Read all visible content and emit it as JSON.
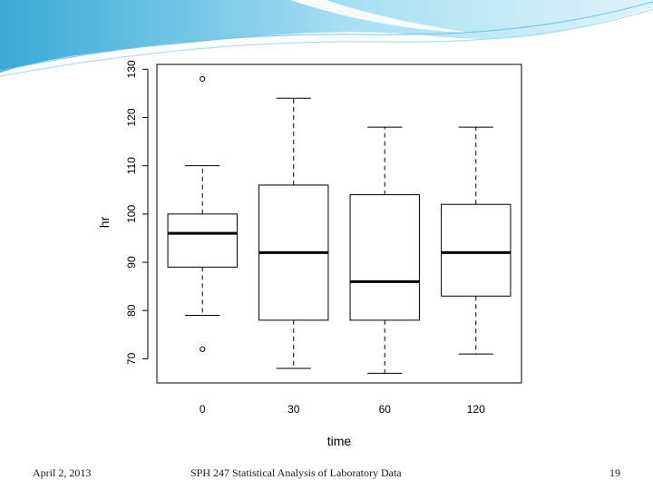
{
  "footer": {
    "date": "April 2, 2013",
    "title": "SPH 247 Statistical Analysis of Laboratory Data",
    "page": "19"
  },
  "colors": {
    "banner_dark": "#39a9d6",
    "banner_light": "#a9e0f3",
    "banner_pale": "#dff3fa"
  },
  "chart_data": {
    "type": "boxplot",
    "title": "",
    "xlabel": "time",
    "ylabel": "hr",
    "categories": [
      "0",
      "30",
      "60",
      "120"
    ],
    "ylim": [
      65,
      131
    ],
    "yticks": [
      70,
      80,
      90,
      100,
      110,
      120,
      130
    ],
    "boxes": [
      {
        "category": "0",
        "whisker_low": 79,
        "q1": 89,
        "median": 96,
        "q3": 100,
        "whisker_high": 110,
        "outliers": [
          72,
          128
        ]
      },
      {
        "category": "30",
        "whisker_low": 68,
        "q1": 78,
        "median": 92,
        "q3": 106,
        "whisker_high": 124,
        "outliers": []
      },
      {
        "category": "60",
        "whisker_low": 67,
        "q1": 78,
        "median": 86,
        "q3": 104,
        "whisker_high": 118,
        "outliers": []
      },
      {
        "category": "120",
        "whisker_low": 71,
        "q1": 83,
        "median": 92,
        "q3": 102,
        "whisker_high": 118,
        "outliers": []
      }
    ],
    "grid": false,
    "legend": "none"
  }
}
